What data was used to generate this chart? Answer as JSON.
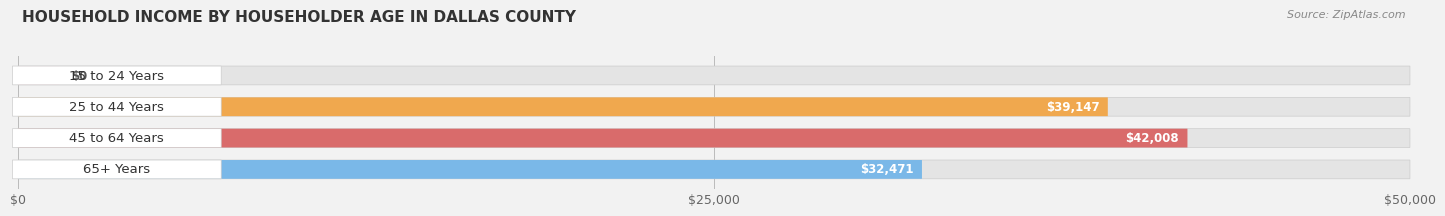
{
  "title": "HOUSEHOLD INCOME BY HOUSEHOLDER AGE IN DALLAS COUNTY",
  "source": "Source: ZipAtlas.com",
  "categories": [
    "15 to 24 Years",
    "25 to 44 Years",
    "45 to 64 Years",
    "65+ Years"
  ],
  "values": [
    0,
    39147,
    42008,
    32471
  ],
  "bar_colors": [
    "#f2a0b5",
    "#f0a84e",
    "#d96b6b",
    "#7ab8e8"
  ],
  "value_labels": [
    "$0",
    "$39,147",
    "$42,008",
    "$32,471"
  ],
  "xlim": [
    0,
    50000
  ],
  "xticks": [
    0,
    25000,
    50000
  ],
  "xticklabels": [
    "$0",
    "$25,000",
    "$50,000"
  ],
  "background_color": "#f2f2f2",
  "bar_bg_color": "#e4e4e4",
  "label_bg_color": "#ffffff",
  "title_fontsize": 11,
  "source_fontsize": 8,
  "label_fontsize": 9.5,
  "value_fontsize": 8.5
}
